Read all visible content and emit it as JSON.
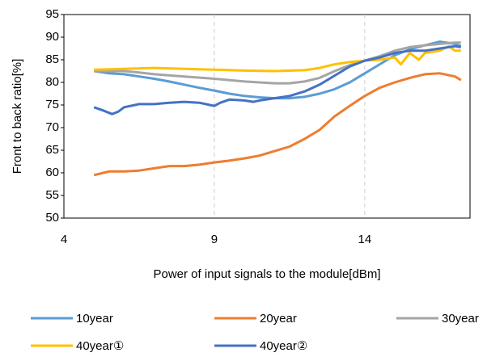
{
  "chart_data": {
    "type": "line",
    "xlabel": "Power of input signals to the module[dBm]",
    "ylabel": "Front to back ratio[%]",
    "xlim": [
      4,
      17.5
    ],
    "xticks": [
      4,
      9,
      14
    ],
    "ylim": [
      50,
      95
    ],
    "yticks": [
      50,
      55,
      60,
      65,
      70,
      75,
      80,
      85,
      90,
      95
    ],
    "grid": "x",
    "legend": "bottom",
    "series": [
      {
        "name": "10year",
        "color": "#5b9bd5",
        "x": [
          5,
          5.5,
          6,
          6.5,
          7,
          7.5,
          8,
          8.5,
          9,
          9.5,
          10,
          10.5,
          11,
          11.5,
          12,
          12.5,
          13,
          13.5,
          14,
          14.5,
          15,
          15.5,
          16,
          16.5,
          17,
          17.2
        ],
        "values": [
          82.5,
          82,
          81.8,
          81.3,
          80.8,
          80.2,
          79.5,
          78.8,
          78.2,
          77.5,
          77,
          76.7,
          76.5,
          76.5,
          76.8,
          77.5,
          78.5,
          80,
          82,
          84,
          86,
          87.3,
          88.2,
          89,
          88.5,
          88
        ]
      },
      {
        "name": "20year",
        "color": "#ed7d31",
        "x": [
          5,
          5.5,
          6,
          6.5,
          7,
          7.5,
          8,
          8.5,
          9,
          9.5,
          10,
          10.5,
          11,
          11.5,
          12,
          12.5,
          13,
          13.5,
          14,
          14.5,
          15,
          15.5,
          16,
          16.5,
          17,
          17.2
        ],
        "values": [
          59.5,
          60.3,
          60.3,
          60.5,
          61,
          61.5,
          61.5,
          61.8,
          62.3,
          62.7,
          63.2,
          63.8,
          64.8,
          65.8,
          67.5,
          69.5,
          72.5,
          74.8,
          77,
          78.8,
          80,
          81,
          81.8,
          82,
          81.3,
          80.5
        ]
      },
      {
        "name": "30year",
        "color": "#a5a5a5",
        "x": [
          5,
          6,
          6.5,
          7,
          8,
          9,
          10,
          11,
          11.5,
          12,
          12.5,
          13,
          13.5,
          14,
          14.5,
          15,
          15.5,
          16,
          16.5,
          17,
          17.2
        ],
        "values": [
          82.5,
          82.5,
          82.2,
          81.8,
          81.3,
          80.8,
          80.2,
          79.8,
          79.8,
          80.2,
          81,
          82.5,
          83.8,
          84.8,
          85.8,
          87,
          87.8,
          88.2,
          88.5,
          88.8,
          88.8
        ]
      },
      {
        "name": "40year①",
        "color": "#ffc000",
        "x": [
          5,
          6,
          7,
          8,
          9,
          10,
          11,
          12,
          12.5,
          13,
          13.5,
          14,
          14.5,
          15,
          15.2,
          15.5,
          15.8,
          16,
          16.5,
          16.8,
          17,
          17.2
        ],
        "values": [
          82.8,
          83,
          83.2,
          83,
          82.8,
          82.6,
          82.5,
          82.7,
          83.2,
          84,
          84.5,
          84.8,
          85,
          85.5,
          84,
          86.5,
          85,
          86.5,
          87,
          88,
          87,
          87
        ]
      },
      {
        "name": "40year②",
        "color": "#4472c4",
        "x": [
          5,
          5.3,
          5.6,
          5.8,
          6,
          6.5,
          7,
          7.5,
          8,
          8.5,
          9,
          9.2,
          9.5,
          10,
          10.3,
          10.5,
          11,
          11.5,
          12,
          12.5,
          13,
          13.5,
          14,
          14.5,
          15,
          15.5,
          16,
          16.5,
          17,
          17.2
        ],
        "values": [
          74.5,
          73.8,
          73,
          73.5,
          74.5,
          75.2,
          75.2,
          75.5,
          75.7,
          75.5,
          74.8,
          75.5,
          76.2,
          76,
          75.7,
          76,
          76.5,
          77,
          78,
          79.5,
          81.5,
          83.5,
          84.8,
          85.5,
          86.5,
          87,
          87,
          87.5,
          88,
          87.8
        ]
      }
    ]
  }
}
